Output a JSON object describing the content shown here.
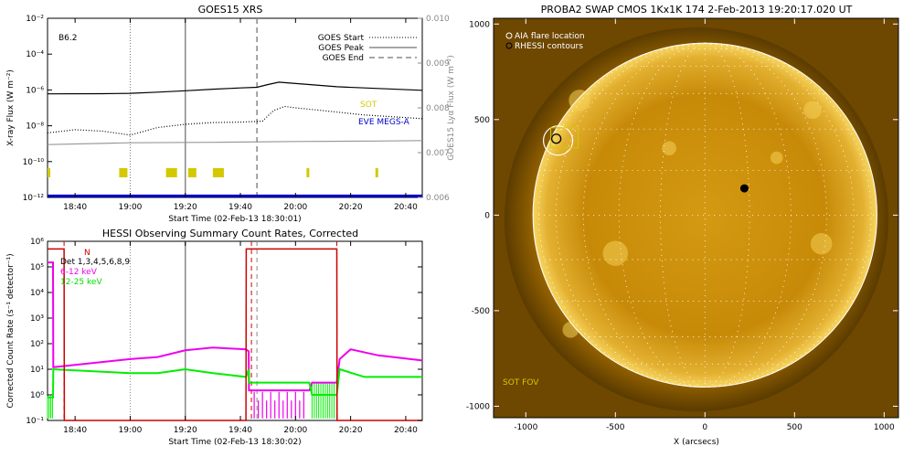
{
  "chart_data": [
    {
      "type": "line",
      "title": "GOES15 XRS",
      "xlabel": "Start Time (02-Feb-13 18:30:01)",
      "ylabel": "X-ray Flux (W m⁻²)",
      "ylabel_right": "GOES15 Lyα Flux (W m⁻²)",
      "x_ticks": [
        "18:40",
        "19:00",
        "19:20",
        "19:40",
        "20:00",
        "20:20",
        "20:40"
      ],
      "y_ticks": [
        "10⁻²",
        "10⁻⁴",
        "10⁻⁶",
        "10⁻⁸",
        "10⁻¹⁰",
        "10⁻¹²"
      ],
      "y_right_ticks": [
        "0.010",
        "0.009",
        "0.008",
        "0.007",
        "0.006"
      ],
      "ylim": [
        1e-12,
        0.01
      ],
      "ylim_right": [
        0.006,
        0.01
      ],
      "xlim_minutes_after_1830": [
        0,
        136
      ],
      "y_scale": "log",
      "level_label": "B6.2",
      "markers": [
        {
          "name": "GOES Start",
          "time_min": 30,
          "style": "dotted"
        },
        {
          "name": "GOES Peak",
          "time_min": 50,
          "style": "solid"
        },
        {
          "name": "GOES End",
          "time_min": 76,
          "style": "dashed"
        }
      ],
      "series": [
        {
          "name": "",
          "color": "#000000",
          "x": [
            0,
            20,
            30,
            40,
            50,
            60,
            70,
            76,
            80,
            84,
            88,
            95,
            105,
            120,
            136
          ],
          "values": [
            6e-07,
            6.2e-07,
            6.5e-07,
            7.5e-07,
            9e-07,
            1.1e-06,
            1.3e-06,
            1.4e-06,
            2e-06,
            2.7e-06,
            2.4e-06,
            2e-06,
            1.5e-06,
            1.2e-06,
            9.5e-07
          ]
        },
        {
          "name": "",
          "color": "#000000",
          "style": "dotted",
          "x": [
            0,
            10,
            20,
            30,
            40,
            50,
            60,
            70,
            78,
            82,
            86,
            90,
            100,
            115,
            136
          ],
          "values": [
            4e-09,
            6e-09,
            5e-09,
            3e-09,
            8e-09,
            1.2e-08,
            1.5e-08,
            1.6e-08,
            1.8e-08,
            7e-08,
            1.2e-07,
            1e-07,
            7e-08,
            4e-08,
            2.5e-08
          ]
        },
        {
          "name": "EVE MEGS-A",
          "color": "#0000cc",
          "x": [
            0,
            136
          ],
          "values": [
            1.2e-12,
            1.2e-12
          ]
        },
        {
          "name": "",
          "color": "#999999",
          "axis": "right",
          "x": [
            0,
            30,
            60,
            90,
            120,
            136
          ],
          "values": [
            0.00718,
            0.00722,
            0.00723,
            0.00725,
            0.00726,
            0.00727
          ]
        }
      ],
      "annotations": [
        {
          "text": "SOT",
          "color": "#d4c800"
        }
      ],
      "sot_bars_minutes": [
        [
          0,
          1
        ],
        [
          26,
          29
        ],
        [
          43,
          47
        ],
        [
          51,
          54
        ],
        [
          60,
          64
        ],
        [
          94,
          95
        ],
        [
          119,
          120
        ]
      ]
    },
    {
      "type": "line",
      "title": "HESSI Observing Summary Count Rates, Corrected",
      "xlabel": "Start Time (02-Feb-13 18:30:02)",
      "ylabel": "Corrected Count Rate (s⁻¹ detector⁻¹)",
      "x_ticks": [
        "18:40",
        "19:00",
        "19:20",
        "19:40",
        "20:00",
        "20:20",
        "20:40"
      ],
      "y_ticks": [
        "10⁶",
        "10⁵",
        "10⁴",
        "10³",
        "10²",
        "10¹",
        "10⁰",
        "10⁻¹"
      ],
      "ylim": [
        0.1,
        1000000.0
      ],
      "xlim_minutes_after_1830": [
        0,
        136
      ],
      "y_scale": "log",
      "flag_label": "N",
      "legend_title": "Det 1,3,4,5,6,8,9",
      "markers": [
        {
          "time_min": 30,
          "style": "dotted",
          "color": "#888888"
        },
        {
          "time_min": 50,
          "style": "solid",
          "color": "#888888"
        },
        {
          "time_min": 76,
          "style": "dashed",
          "color": "#888888"
        },
        {
          "time_min": 6,
          "style": "dashed",
          "color": "#cc0000"
        },
        {
          "time_min": 74,
          "style": "dashed",
          "color": "#cc0000"
        },
        {
          "time_min": 105,
          "style": "dashed",
          "color": "#cc0000"
        }
      ],
      "series": [
        {
          "name": "6-12 keV",
          "color": "#ee00ee",
          "x": [
            0,
            2,
            2.1,
            30,
            40,
            50,
            60,
            72,
            73,
            73.1,
            80,
            95,
            96,
            105,
            106,
            110,
            120,
            136
          ],
          "values": [
            150000.0,
            150000.0,
            12,
            25,
            30,
            55,
            70,
            60,
            50,
            1.5,
            1.5,
            1.5,
            3,
            3,
            25,
            60,
            35,
            22
          ]
        },
        {
          "name": "12-25 keV",
          "color": "#00ee00",
          "x": [
            0,
            2,
            2.1,
            20,
            30,
            40,
            50,
            60,
            72,
            73,
            73.1,
            80,
            95,
            96,
            105,
            106,
            115,
            136
          ],
          "values": [
            0.8,
            0.8,
            10,
            8,
            7,
            7,
            10,
            7,
            5,
            10,
            3,
            3,
            3,
            1,
            1,
            10,
            5,
            5
          ]
        },
        {
          "name": "",
          "color": "#cc0000",
          "x": [
            0,
            6,
            6.1,
            72,
            72.1,
            105,
            105.1,
            136
          ],
          "values": [
            500000.0,
            500000.0,
            0.1,
            0.1,
            500000.0,
            500000.0,
            0.1,
            0.1
          ]
        }
      ]
    },
    {
      "type": "heatmap",
      "title": "PROBA2 SWAP CMOS 1Kx1K 174   2-Feb-2013 19:20:17.020 UT",
      "xlabel": "X (arcsecs)",
      "ylabel": "",
      "x_ticks": [
        "-1000",
        "-500",
        "0",
        "500",
        "1000"
      ],
      "y_ticks": [
        "1000",
        "500",
        "0",
        "-500",
        "-1000"
      ],
      "xlim": [
        -1180,
        1080
      ],
      "ylim": [
        -1060,
        1030
      ],
      "legend": [
        {
          "text": "AIA flare location",
          "marker": "white-circle"
        },
        {
          "text": "RHESSI contours",
          "marker": "black-circle"
        }
      ],
      "annotations": [
        {
          "text": "SOT FOV",
          "color": "#d4c800"
        }
      ],
      "features": [
        {
          "name": "AIA flare location",
          "x": -820,
          "y": 390
        },
        {
          "name": "RHESSI contour",
          "x": -830,
          "y": 400
        },
        {
          "name": "RHESSI contour",
          "x": 220,
          "y": 140
        }
      ]
    }
  ]
}
